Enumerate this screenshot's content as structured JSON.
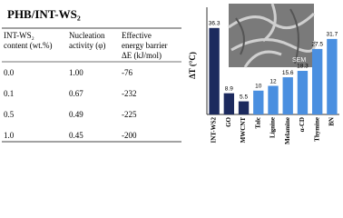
{
  "table": {
    "title": "PHB/INT-WS₂",
    "headers": [
      "INT-WS₂ content (wt.%)",
      "Nucleation activity (φ)",
      "Effective energy barrier ΔE (kJ/mol)"
    ],
    "rows": [
      [
        "0.0",
        "1.00",
        "-76"
      ],
      [
        "0.1",
        "0.67",
        "-232"
      ],
      [
        "0.5",
        "0.49",
        "-225"
      ],
      [
        "1.0",
        "0.45",
        "-200"
      ]
    ]
  },
  "chart_data": {
    "type": "bar",
    "ylabel": "ΔT (°C)",
    "inset_label": "SEM",
    "categories": [
      "INT-WS2",
      "GO",
      "MWCNT",
      "Talc",
      "Lignine",
      "Melamine",
      "α-CD",
      "Thymine",
      "BN"
    ],
    "values": [
      36.3,
      8.9,
      5.5,
      10,
      12,
      15.6,
      18.3,
      27.5,
      31.7
    ],
    "colors": [
      "#1c2a5e",
      "#1c2a5e",
      "#1c2a5e",
      "#4a8fe0",
      "#4a8fe0",
      "#4a8fe0",
      "#4a8fe0",
      "#4a8fe0",
      "#4a8fe0"
    ],
    "ylim": [
      0,
      45
    ]
  }
}
